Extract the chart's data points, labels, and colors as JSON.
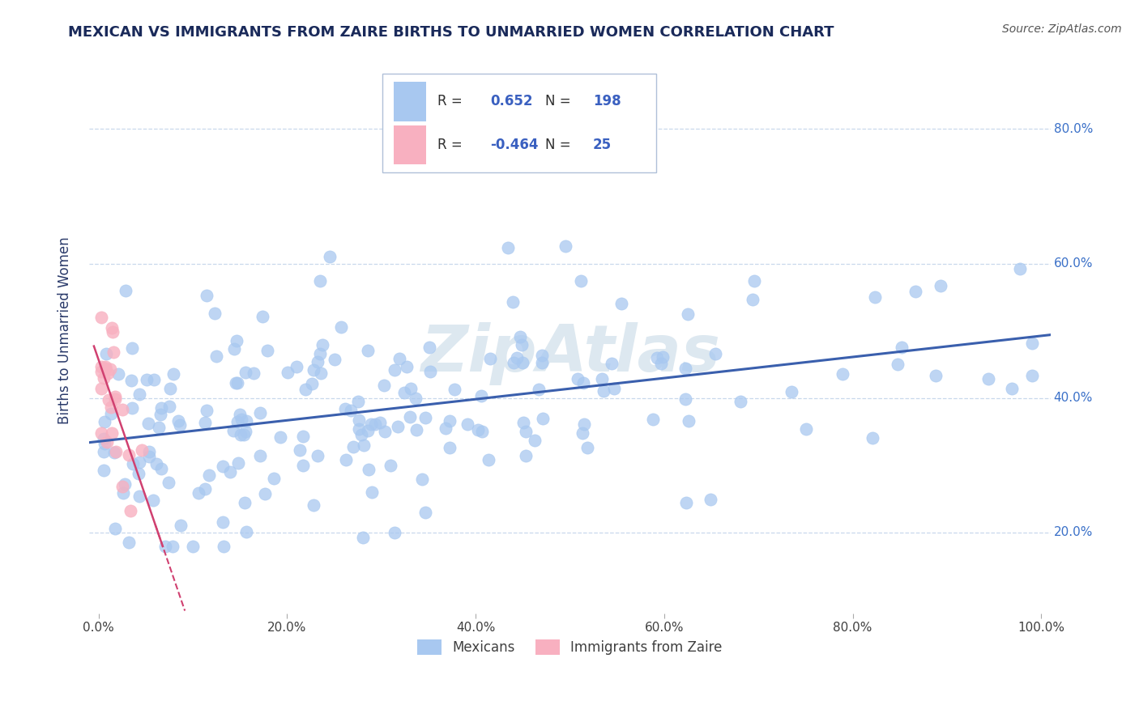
{
  "title": "MEXICAN VS IMMIGRANTS FROM ZAIRE BIRTHS TO UNMARRIED WOMEN CORRELATION CHART",
  "source": "Source: ZipAtlas.com",
  "ylabel": "Births to Unmarried Women",
  "legend_labels": [
    "Mexicans",
    "Immigrants from Zaire"
  ],
  "R_mexican": 0.652,
  "N_mexican": 198,
  "R_zaire": -0.464,
  "N_zaire": 25,
  "xlim": [
    -0.01,
    1.01
  ],
  "ylim": [
    0.08,
    0.92
  ],
  "x_ticks": [
    0.0,
    0.2,
    0.4,
    0.6,
    0.8,
    1.0
  ],
  "x_tick_labels": [
    "0.0%",
    "20.0%",
    "40.0%",
    "60.0%",
    "80.0%",
    "100.0%"
  ],
  "y_ticks": [
    0.2,
    0.4,
    0.6,
    0.8
  ],
  "y_tick_labels": [
    "20.0%",
    "40.0%",
    "60.0%",
    "80.0%"
  ],
  "color_mexican": "#a8c8f0",
  "color_zaire": "#f8b0c0",
  "color_trendline_mexican": "#3a5fad",
  "color_trendline_zaire": "#d04070",
  "watermark_color": "#dde8f0",
  "grid_color": "#c8d8ec",
  "title_color": "#1a2a5a",
  "axis_label_color": "#2a3a6a",
  "tick_color_blue": "#3a70c8",
  "legend_border_color": "#b0c0d8",
  "legend_text_dark": "#303030",
  "legend_text_blue": "#3a60c0"
}
